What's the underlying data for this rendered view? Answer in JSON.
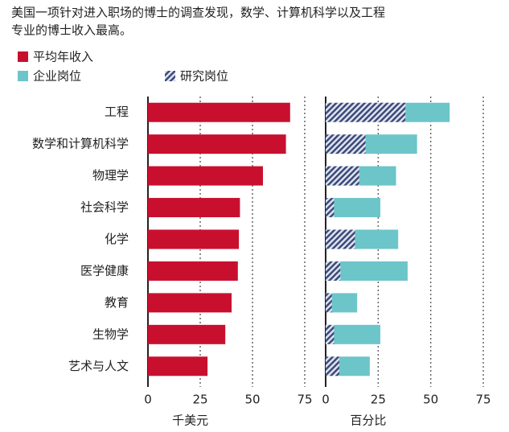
{
  "title": [
    "美国一项针对进入职场的博士的调查发现，数学、计算机科学以及工程",
    "专业的博士收入最高。"
  ],
  "chart_data": [
    {
      "type": "bar",
      "orientation": "horizontal",
      "categories": [
        "工程",
        "数学和计算机科学",
        "物理学",
        "社会科学",
        "化学",
        "医学健康",
        "教育",
        "生物学",
        "艺术与人文"
      ],
      "series": [
        {
          "name": "平均年收入",
          "color": "#c8102e",
          "values": [
            68,
            66,
            55,
            44,
            43.5,
            43,
            40,
            37,
            28.5
          ]
        }
      ],
      "xlim": [
        0,
        75
      ],
      "xticks": [
        0,
        25,
        50,
        75
      ],
      "xlabel": "千美元",
      "grid": true
    },
    {
      "type": "stacked_bar",
      "orientation": "horizontal",
      "series": [
        {
          "name": "研究岗位",
          "color": "#3b4a7a",
          "pattern": "hatch",
          "values": [
            38,
            19,
            16,
            4,
            14,
            7,
            3,
            4,
            6.5
          ]
        },
        {
          "name": "企业岗位",
          "color": "#6cc5c9",
          "values": [
            21,
            24.5,
            17.5,
            22,
            20.5,
            32,
            12,
            22,
            14.5
          ]
        }
      ],
      "xlim": [
        0,
        75
      ],
      "xticks": [
        0,
        25,
        50,
        75
      ],
      "xlabel": "百分比",
      "grid": true
    }
  ]
}
